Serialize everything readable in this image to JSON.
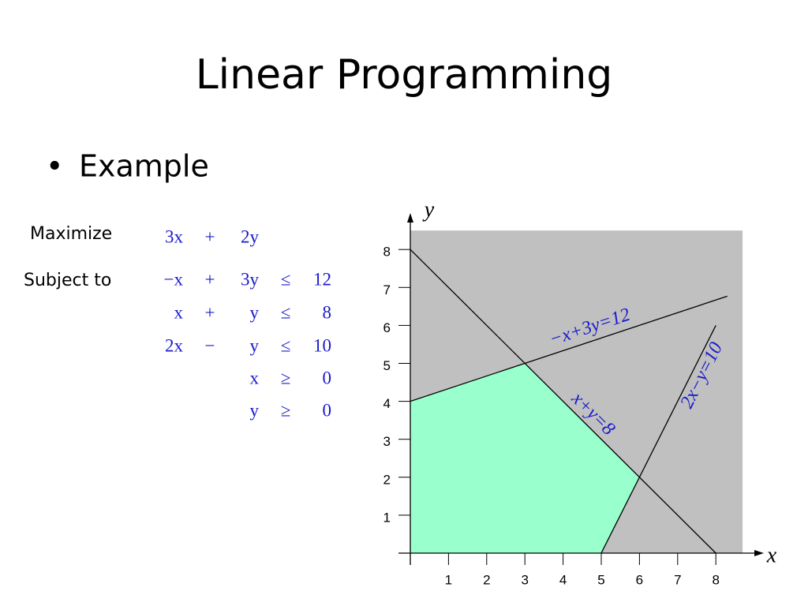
{
  "title": "Linear Programming",
  "bullet": "Example",
  "problem": {
    "objective_label": "Maximize",
    "objective": [
      "3x",
      "+",
      "2y"
    ],
    "constraints_label": "Subject to",
    "constraints": [
      {
        "lhs": [
          "−x",
          "+",
          "3y"
        ],
        "rel": "≤",
        "rhs": "12"
      },
      {
        "lhs": [
          "x",
          "+",
          "y"
        ],
        "rel": "≤",
        "rhs": "8"
      },
      {
        "lhs": [
          "2x",
          "−",
          "y"
        ],
        "rel": "≤",
        "rhs": "10"
      },
      {
        "lhs": [
          "x"
        ],
        "rel": "≥",
        "rhs": "0"
      },
      {
        "lhs": [
          "y"
        ],
        "rel": "≥",
        "rhs": "0"
      }
    ]
  },
  "chart_data": {
    "type": "feasible-region",
    "xlabel": "x",
    "ylabel": "y",
    "xlim": [
      0,
      8.7
    ],
    "ylim": [
      0,
      8.5
    ],
    "xticks": [
      1,
      2,
      3,
      4,
      5,
      6,
      7,
      8
    ],
    "yticks": [
      1,
      2,
      3,
      4,
      5,
      6,
      7,
      8
    ],
    "background": "#c0c0c0",
    "region": {
      "x": [
        0,
        0,
        3,
        6,
        5
      ],
      "y": [
        0,
        4,
        5,
        2,
        0
      ],
      "color": "#99ffcc"
    },
    "label_color": "#1a1acc",
    "series": [
      {
        "name": "−x+3y=12",
        "color": "#000000",
        "x": [
          0,
          8.3
        ],
        "y": [
          4,
          6.77
        ]
      },
      {
        "name": "x+y=8",
        "color": "#000000",
        "x": [
          0,
          8
        ],
        "y": [
          8,
          0
        ]
      },
      {
        "name": "2x−y=10",
        "color": "#000000",
        "x": [
          5,
          8
        ],
        "y": [
          0,
          6
        ]
      }
    ]
  }
}
